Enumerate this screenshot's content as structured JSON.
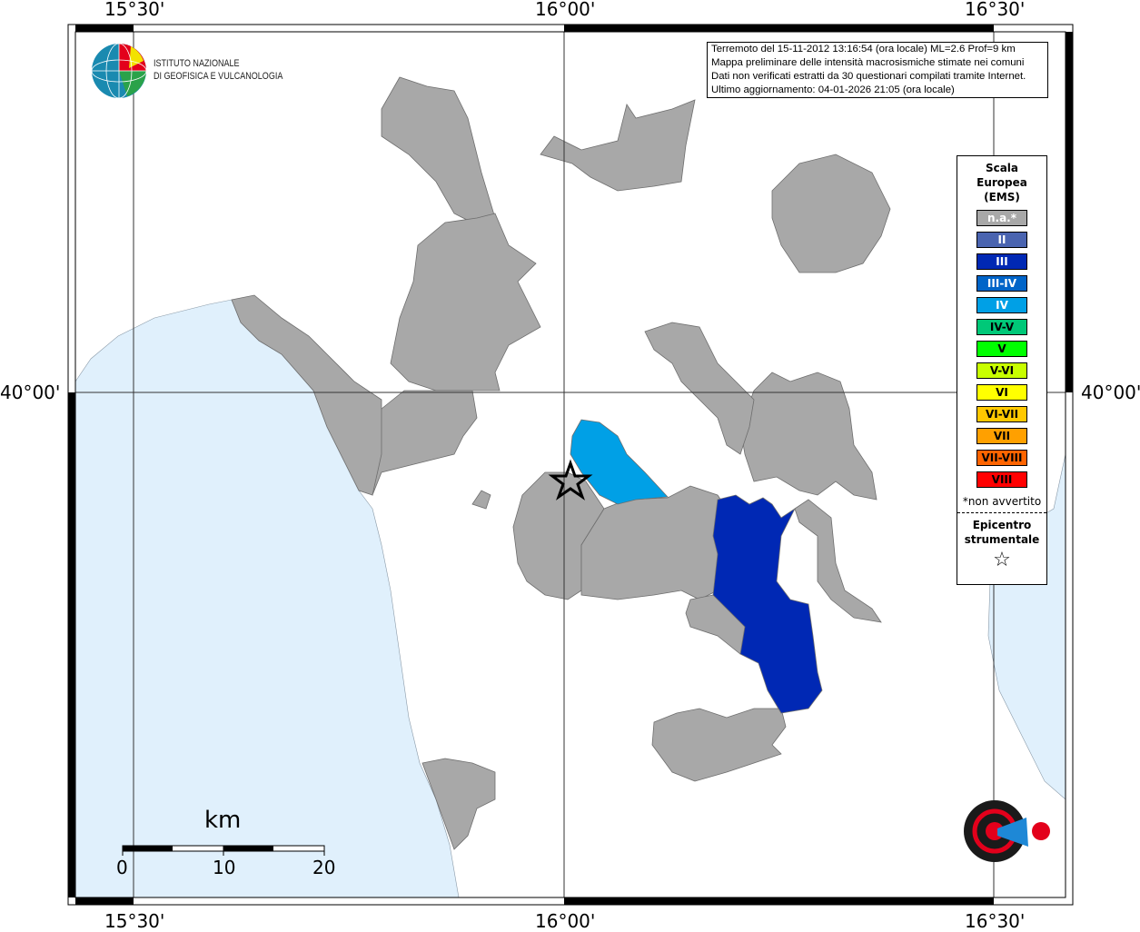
{
  "axes": {
    "top": [
      "15°30'",
      "16°00'",
      "16°30'"
    ],
    "bottom": [
      "15°30'",
      "16°00'",
      "16°30'"
    ],
    "left": "40°00'",
    "right": "40°00'"
  },
  "info": {
    "lines": [
      "Terremoto del 15-11-2012 13:16:54 (ora locale) ML=2.6 Prof=9 km",
      "Mappa preliminare delle intensità macrosismiche stimate nei comuni",
      "Dati non verificati estratti da 30 questionari compilati tramite Internet.",
      "Ultimo aggiornamento: 04-01-2026 21:05 (ora locale)"
    ]
  },
  "legend": {
    "title": [
      "Scala",
      "Europea",
      "(EMS)"
    ],
    "items": [
      {
        "label": "n.a.*",
        "color": "#a8a8a8",
        "text": "#ffffff"
      },
      {
        "label": "II",
        "color": "#4a64b0",
        "text": "#ffffff"
      },
      {
        "label": "III",
        "color": "#0028b4",
        "text": "#ffffff"
      },
      {
        "label": "III-IV",
        "color": "#0064c8",
        "text": "#ffffff"
      },
      {
        "label": "IV",
        "color": "#00a0e6",
        "text": "#ffffff"
      },
      {
        "label": "IV-V",
        "color": "#00c878",
        "text": "#000000"
      },
      {
        "label": "V",
        "color": "#00ff00",
        "text": "#000000"
      },
      {
        "label": "V-VI",
        "color": "#c8ff00",
        "text": "#000000"
      },
      {
        "label": "VI",
        "color": "#ffff00",
        "text": "#000000"
      },
      {
        "label": "VI-VII",
        "color": "#ffc800",
        "text": "#000000"
      },
      {
        "label": "VII",
        "color": "#ffa000",
        "text": "#000000"
      },
      {
        "label": "VII-VIII",
        "color": "#ff6400",
        "text": "#000000"
      },
      {
        "label": "VIII",
        "color": "#ff0000",
        "text": "#000000"
      }
    ],
    "note": "*non avvertito",
    "epicentre": [
      "Epicentro",
      "strumentale"
    ],
    "epicentre_icon": "star-outline"
  },
  "scalebar": {
    "unit": "km",
    "ticks": [
      "0",
      "10",
      "20"
    ]
  },
  "logos": {
    "ingv": [
      "ISTITUTO NAZIONALE",
      "DI GEOFISICA E VULCANOLOGIA"
    ],
    "hsit": "www.haisentitoilterremoto.it"
  },
  "map": {
    "sea_color": "#e0f0fc",
    "land_color": "#ffffff",
    "municipality_na_color": "#a8a8a8",
    "intensities": [
      {
        "area": "north of epicentre",
        "level": "IV"
      },
      {
        "area": "south-east",
        "level": "III"
      }
    ]
  }
}
